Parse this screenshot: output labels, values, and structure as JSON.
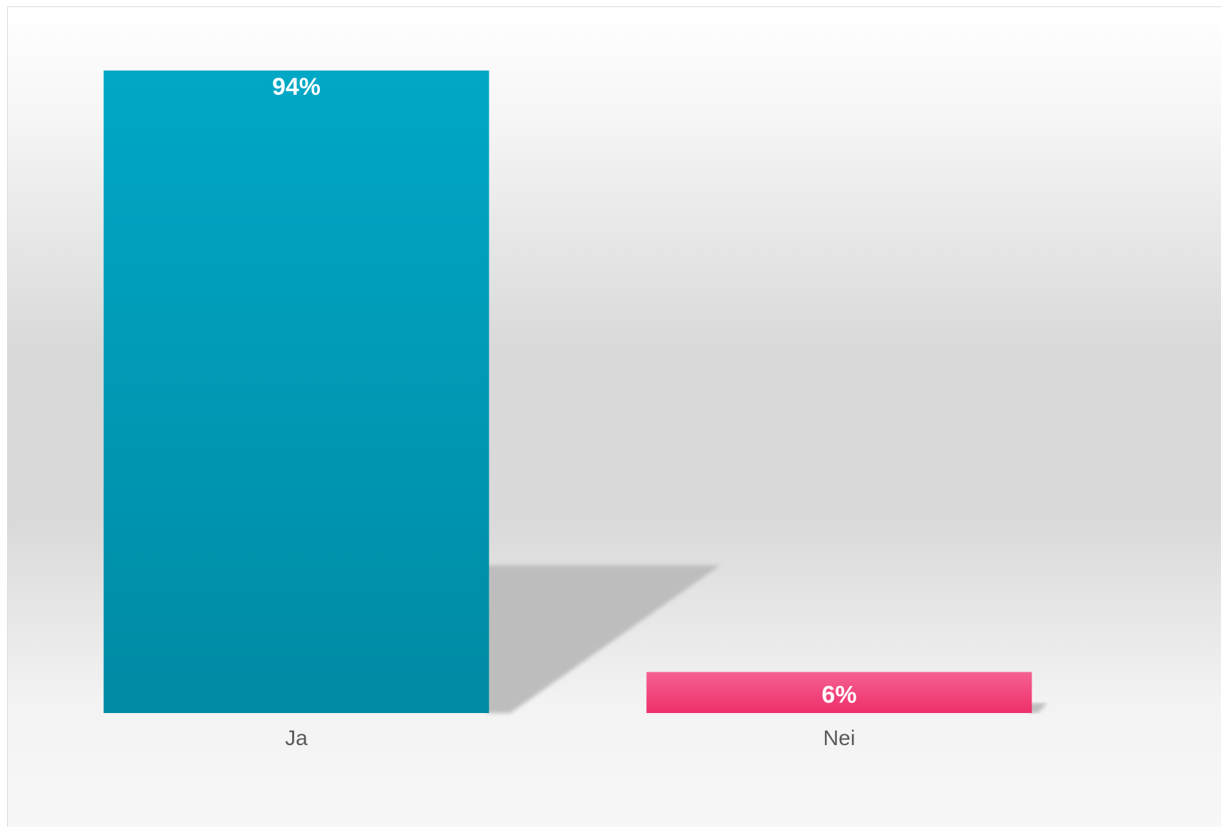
{
  "chart_data": {
    "type": "bar",
    "title": "",
    "xlabel": "",
    "ylabel": "",
    "ylim": [
      0,
      100
    ],
    "grid": false,
    "legend": "none",
    "categories": [
      "Ja",
      "Nei"
    ],
    "values": [
      94,
      6
    ],
    "data_labels": [
      "94%",
      "6%"
    ],
    "colors": {
      "Ja": {
        "top": "#00a8c6",
        "bottom": "#008aa3"
      },
      "Nei": {
        "top": "#f5618f",
        "bottom": "#ee2f6b"
      }
    },
    "shadow_color": "#bdbdbd",
    "background": {
      "edge": "#ffffff",
      "middle": "#d9d9d9"
    }
  }
}
